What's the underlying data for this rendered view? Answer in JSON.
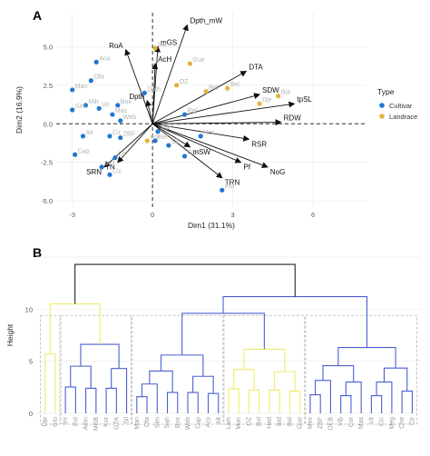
{
  "chart_data": [
    {
      "panel": "A",
      "type": "scatter",
      "subtype": "pca-biplot",
      "xlabel": "Dim1 (31.1%)",
      "ylabel": "Dim2 (16.9%)",
      "xlim": [
        -3.6,
        8.0
      ],
      "ylim": [
        -5.4,
        7.2
      ],
      "x_ticks": [
        -3,
        0,
        3,
        6
      ],
      "y_ticks": [
        -5.0,
        -2.5,
        0.0,
        2.5,
        5.0
      ],
      "legend": {
        "title": "Type",
        "position": "right"
      },
      "series": [
        {
          "name": "Cultivar",
          "color": "#1f78d1",
          "points": [
            {
              "x": -2.1,
              "y": 4.0,
              "label": "Aca"
            },
            {
              "x": -2.3,
              "y": 2.8,
              "label": "Ofa"
            },
            {
              "x": -3.0,
              "y": 2.2,
              "label": "Man"
            },
            {
              "x": -2.5,
              "y": 1.2,
              "label": "Mih"
            },
            {
              "x": -3.0,
              "y": 0.9,
              "label": "Sim"
            },
            {
              "x": -2.0,
              "y": 1.0,
              "label": "Vit"
            },
            {
              "x": -1.3,
              "y": 1.2,
              "label": "Box"
            },
            {
              "x": -1.5,
              "y": 0.6,
              "label": "Mas"
            },
            {
              "x": -2.6,
              "y": -0.8,
              "label": "Alt"
            },
            {
              "x": -2.9,
              "y": -2.0,
              "label": "Cap"
            },
            {
              "x": -1.6,
              "y": -0.8,
              "label": "Cir"
            },
            {
              "x": -1.2,
              "y": -0.9,
              "label": "ZBF"
            },
            {
              "x": -1.2,
              "y": 0.2,
              "label": "Web"
            },
            {
              "x": -1.9,
              "y": -2.8,
              "label": "Mol"
            },
            {
              "x": -1.6,
              "y": -3.3,
              "label": "Cic"
            },
            {
              "x": -1.4,
              "y": -2.2,
              "label": "Cit"
            },
            {
              "x": 0.2,
              "y": -0.5,
              "label": "Sor"
            },
            {
              "x": 0.1,
              "y": -1.1,
              "label": "Ref"
            },
            {
              "x": 1.2,
              "y": -2.1,
              "label": "GTA"
            },
            {
              "x": 0.6,
              "y": -1.4,
              "label": "Sil"
            },
            {
              "x": 1.8,
              "y": -0.8,
              "label": "Hec"
            },
            {
              "x": 2.6,
              "y": -4.3,
              "label": "Pol"
            },
            {
              "x": 0.5,
              "y": -5.6,
              "label": "Inr"
            },
            {
              "x": -0.3,
              "y": 2.0,
              "label": "Dpth"
            },
            {
              "x": 1.2,
              "y": 0.6,
              "label": "Ref"
            }
          ]
        },
        {
          "name": "Landrace",
          "color": "#e3b23c",
          "points": [
            {
              "x": 0.1,
              "y": 4.9,
              "label": "Lar"
            },
            {
              "x": 1.4,
              "y": 3.9,
              "label": "Gue"
            },
            {
              "x": 0.9,
              "y": 2.5,
              "label": "OZ"
            },
            {
              "x": 2.0,
              "y": 2.1,
              "label": "Bid"
            },
            {
              "x": 2.8,
              "y": 2.3,
              "label": "Bel"
            },
            {
              "x": 4.0,
              "y": 1.3,
              "label": "Dje"
            },
            {
              "x": 4.7,
              "y": 1.8,
              "label": "Bol"
            },
            {
              "x": 8.1,
              "y": 1.1,
              "label": "Glo"
            },
            {
              "x": -0.2,
              "y": -1.1,
              "label": "Ark"
            }
          ]
        }
      ],
      "loadings": [
        {
          "label": "Dpth_mW",
          "x": 1.3,
          "y": 6.4
        },
        {
          "label": "mGS",
          "x": 0.2,
          "y": 5.0
        },
        {
          "label": "RoA",
          "x": -1.0,
          "y": 4.8
        },
        {
          "label": "AcH",
          "x": 0.1,
          "y": 3.9
        },
        {
          "label": "Dpth",
          "x": -0.2,
          "y": 1.5
        },
        {
          "label": "DTA",
          "x": 3.5,
          "y": 3.4
        },
        {
          "label": "SDW",
          "x": 4.0,
          "y": 1.9
        },
        {
          "label": "tpSL",
          "x": 5.3,
          "y": 1.3
        },
        {
          "label": "RDW",
          "x": 4.8,
          "y": 0.1
        },
        {
          "label": "RSR",
          "x": 3.6,
          "y": -1.0
        },
        {
          "label": "Pf",
          "x": 3.3,
          "y": -2.5
        },
        {
          "label": "NoG",
          "x": 4.3,
          "y": -2.8
        },
        {
          "label": "TRN",
          "x": 2.6,
          "y": -3.5
        },
        {
          "label": "mSW",
          "x": 1.4,
          "y": -1.5
        },
        {
          "label": "SRN",
          "x": -1.8,
          "y": -2.8
        },
        {
          "label": "TN",
          "x": -1.3,
          "y": -2.5
        }
      ],
      "loading_color": "#111111"
    },
    {
      "panel": "B",
      "type": "dendrogram",
      "ylabel": "Height",
      "ylim": [
        0,
        15
      ],
      "y_ticks": [
        0,
        5,
        10
      ],
      "leaves": [
        "Dje",
        "Glo",
        "Inr",
        "Pol",
        "Amn",
        "MBB",
        "Kor",
        "GTA",
        "Sil",
        "Man",
        "Ofa",
        "Sim",
        "Sah",
        "Box",
        "Web",
        "Cap",
        "Acs",
        "Alt",
        "Lam",
        "Mon",
        "OZ",
        "Bol",
        "Hed",
        "Bid",
        "Bel",
        "Gue",
        "Mex",
        "ZBF",
        "OEB",
        "Vib",
        "Cor",
        "Mas",
        "Vit",
        "Cic",
        "Meg",
        "Che",
        "Cir"
      ],
      "clusters": [
        {
          "leaves": [
            0,
            1
          ],
          "color": "#f0ec6a"
        },
        {
          "leaves": [
            2,
            3,
            4,
            5,
            6,
            7,
            8
          ],
          "color": "#4a5fd0"
        },
        {
          "leaves": [
            9,
            10,
            11,
            12,
            13,
            14,
            15,
            16,
            17
          ],
          "color": "#4a5fd0"
        },
        {
          "leaves": [
            18,
            19,
            20,
            21,
            22,
            23,
            24,
            25
          ],
          "color": "#f0ec6a"
        },
        {
          "leaves": [
            26,
            27,
            28,
            29,
            30,
            31,
            32,
            33,
            34,
            35,
            36
          ],
          "color": "#4a5fd0"
        }
      ],
      "root_height": 14.3
    }
  ],
  "labels": {
    "panel_a": "A",
    "panel_b": "B"
  }
}
